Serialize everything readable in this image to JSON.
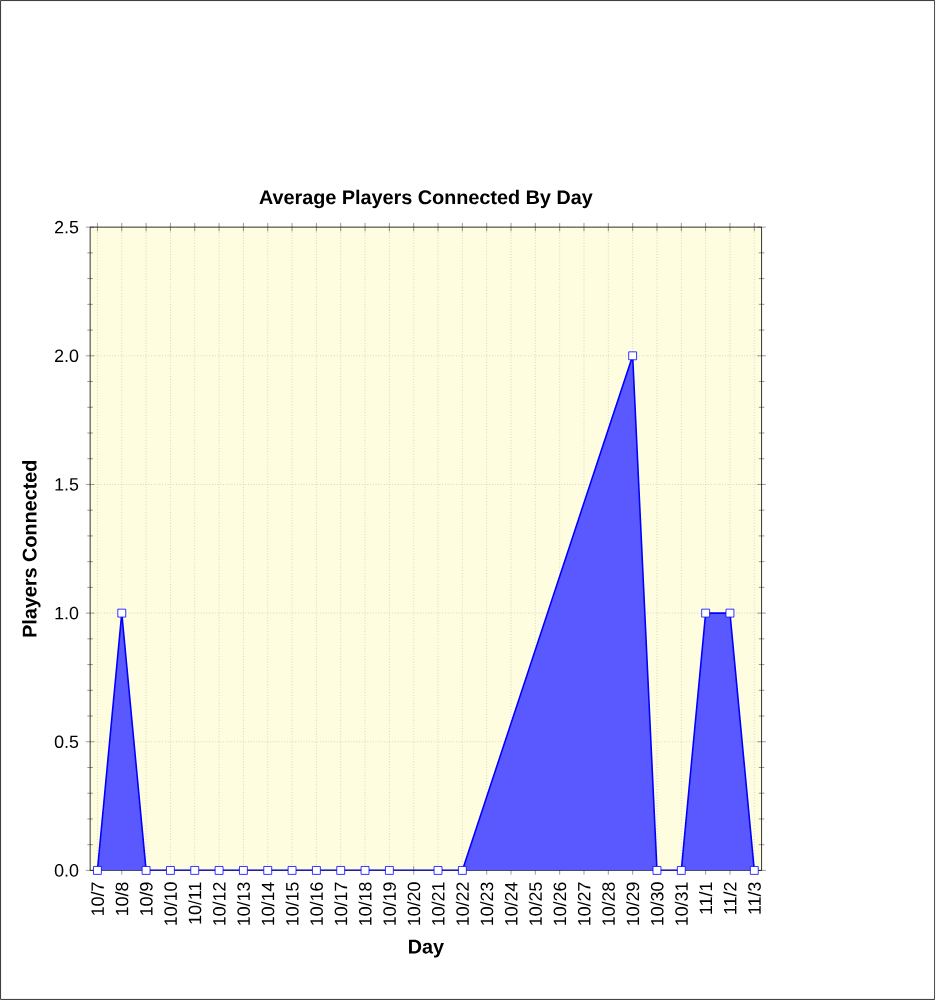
{
  "chart_data": {
    "type": "area",
    "title": "Average Players Connected By Day",
    "xlabel": "Day",
    "ylabel": "Players Connected",
    "categories": [
      "10/7",
      "10/8",
      "10/9",
      "10/10",
      "10/11",
      "10/12",
      "10/13",
      "10/14",
      "10/15",
      "10/16",
      "10/17",
      "10/18",
      "10/19",
      "10/20",
      "10/21",
      "10/22",
      "10/23",
      "10/24",
      "10/25",
      "10/26",
      "10/27",
      "10/28",
      "10/29",
      "10/30",
      "10/31",
      "11/1",
      "11/2",
      "11/3"
    ],
    "series": [
      {
        "color": "#0000ff",
        "values": [
          0,
          1,
          0,
          0,
          0,
          0,
          0,
          0,
          0,
          0,
          0,
          0,
          0,
          null,
          0,
          0,
          null,
          null,
          null,
          null,
          null,
          null,
          2,
          0,
          0,
          1,
          1,
          0
        ]
      }
    ],
    "ylim": [
      0,
      2.5
    ],
    "yticks": [
      {
        "value": 0,
        "label": "0.0"
      },
      {
        "value": 0.5,
        "label": "0.5"
      },
      {
        "value": 1,
        "label": "1.0"
      },
      {
        "value": 1.5,
        "label": "1.5"
      },
      {
        "value": 2,
        "label": "2.0"
      },
      {
        "value": 2.5,
        "label": "2.5"
      }
    ],
    "grid": true,
    "marker": "square",
    "line_style": "solid"
  }
}
